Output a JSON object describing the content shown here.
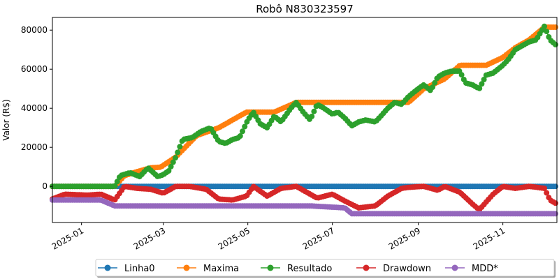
{
  "chart_data": {
    "type": "line",
    "title": "Robô N830323597",
    "xlabel": "",
    "ylabel": "Valor (R$)",
    "xlim": [
      "2024-12-11",
      "2025-12-10"
    ],
    "ylim": [
      -18500,
      86500
    ],
    "y_ticks": [
      0,
      20000,
      40000,
      60000,
      80000
    ],
    "x_ticks": [
      {
        "date": "2025-01-01",
        "label": "2025-01"
      },
      {
        "date": "2025-03-01",
        "label": "2025-03"
      },
      {
        "date": "2025-05-01",
        "label": "2025-05"
      },
      {
        "date": "2025-07-01",
        "label": "2025-07"
      },
      {
        "date": "2025-09-01",
        "label": "2025-09"
      },
      {
        "date": "2025-11-01",
        "label": "2025-11"
      }
    ],
    "legend": "bottom-center",
    "grid": false,
    "series": [
      {
        "name": "Linha0",
        "color": "#1f77b4",
        "marker": "circle",
        "x": [
          "2024-12-11",
          "2025-12-10"
        ],
        "y": [
          0,
          0
        ]
      },
      {
        "name": "Maxima",
        "color": "#ff7f0e",
        "marker": "circle",
        "x": [
          "2024-12-11",
          "2025-01-25",
          "2025-02-01",
          "2025-02-10",
          "2025-02-20",
          "2025-02-27",
          "2025-03-10",
          "2025-03-25",
          "2025-04-10",
          "2025-04-30",
          "2025-05-20",
          "2025-06-05",
          "2025-07-01",
          "2025-08-01",
          "2025-08-25",
          "2025-09-05",
          "2025-09-20",
          "2025-10-01",
          "2025-10-20",
          "2025-11-01",
          "2025-11-10",
          "2025-11-20",
          "2025-12-01",
          "2025-12-10"
        ],
        "y": [
          0,
          0,
          5500,
          7500,
          9500,
          9800,
          15000,
          26000,
          30000,
          38000,
          38000,
          43000,
          43000,
          43000,
          43000,
          50000,
          55000,
          62000,
          62000,
          66000,
          71000,
          75000,
          81500,
          81500
        ]
      },
      {
        "name": "Resultado",
        "color": "#2ca02c",
        "marker": "circle",
        "x": [
          "2024-12-11",
          "2025-01-25",
          "2025-01-29",
          "2025-02-05",
          "2025-02-12",
          "2025-02-18",
          "2025-02-25",
          "2025-03-01",
          "2025-03-05",
          "2025-03-10",
          "2025-03-15",
          "2025-03-22",
          "2025-03-28",
          "2025-04-04",
          "2025-04-10",
          "2025-04-15",
          "2025-04-20",
          "2025-04-25",
          "2025-05-01",
          "2025-05-05",
          "2025-05-10",
          "2025-05-15",
          "2025-05-20",
          "2025-05-25",
          "2025-06-01",
          "2025-06-05",
          "2025-06-10",
          "2025-06-15",
          "2025-06-20",
          "2025-06-25",
          "2025-07-01",
          "2025-07-05",
          "2025-07-10",
          "2025-07-15",
          "2025-07-20",
          "2025-07-25",
          "2025-08-01",
          "2025-08-05",
          "2025-08-10",
          "2025-08-15",
          "2025-08-20",
          "2025-08-25",
          "2025-09-01",
          "2025-09-05",
          "2025-09-10",
          "2025-09-15",
          "2025-09-20",
          "2025-09-25",
          "2025-10-01",
          "2025-10-05",
          "2025-10-10",
          "2025-10-15",
          "2025-10-20",
          "2025-10-25",
          "2025-11-01",
          "2025-11-05",
          "2025-11-10",
          "2025-11-15",
          "2025-11-20",
          "2025-11-25",
          "2025-12-01",
          "2025-12-05",
          "2025-12-10"
        ],
        "y": [
          0,
          0,
          5500,
          7000,
          5000,
          9500,
          5000,
          6000,
          8000,
          15000,
          24000,
          25000,
          28000,
          30000,
          23000,
          22000,
          24000,
          25000,
          34000,
          38000,
          32000,
          30000,
          36000,
          33000,
          40000,
          43000,
          38000,
          34000,
          42000,
          40000,
          37000,
          38000,
          35000,
          31000,
          33000,
          34000,
          33000,
          36000,
          40000,
          43000,
          42000,
          46000,
          50000,
          52000,
          49000,
          56000,
          58000,
          59000,
          59000,
          53000,
          52000,
          50000,
          57000,
          58000,
          62000,
          65000,
          70000,
          72000,
          74000,
          75000,
          82000,
          75000,
          72000
        ]
      },
      {
        "name": "Drawdown",
        "color": "#d62728",
        "marker": "circle",
        "x": [
          "2024-12-11",
          "2024-12-20",
          "2025-01-05",
          "2025-01-15",
          "2025-01-25",
          "2025-02-01",
          "2025-02-10",
          "2025-02-20",
          "2025-03-01",
          "2025-03-10",
          "2025-03-20",
          "2025-04-01",
          "2025-04-10",
          "2025-04-20",
          "2025-04-30",
          "2025-05-05",
          "2025-05-15",
          "2025-05-25",
          "2025-06-05",
          "2025-06-20",
          "2025-07-01",
          "2025-07-10",
          "2025-07-20",
          "2025-08-01",
          "2025-08-10",
          "2025-08-20",
          "2025-08-25",
          "2025-09-05",
          "2025-09-15",
          "2025-09-20",
          "2025-10-01",
          "2025-10-10",
          "2025-10-15",
          "2025-10-25",
          "2025-11-01",
          "2025-11-10",
          "2025-11-20",
          "2025-12-01",
          "2025-12-05",
          "2025-12-10"
        ],
        "y": [
          -6500,
          -4000,
          -4500,
          -4000,
          -7000,
          0,
          -1000,
          -1500,
          -3500,
          0,
          0,
          -1500,
          -6500,
          -7000,
          -5000,
          0,
          -5000,
          -1000,
          0,
          -6000,
          -4000,
          -7500,
          -11000,
          -10000,
          -5000,
          -1000,
          -500,
          0,
          -2000,
          0,
          -3000,
          -9000,
          -12000,
          -4000,
          0,
          -1000,
          0,
          -1000,
          -7000,
          -9000
        ]
      },
      {
        "name": "MDD*",
        "color": "#9467bd",
        "marker": "circle",
        "x": [
          "2024-12-11",
          "2025-01-15",
          "2025-01-25",
          "2025-06-15",
          "2025-07-10",
          "2025-07-15",
          "2025-12-10"
        ],
        "y": [
          -7000,
          -7000,
          -10000,
          -10000,
          -11000,
          -14000,
          -14000
        ]
      }
    ]
  }
}
